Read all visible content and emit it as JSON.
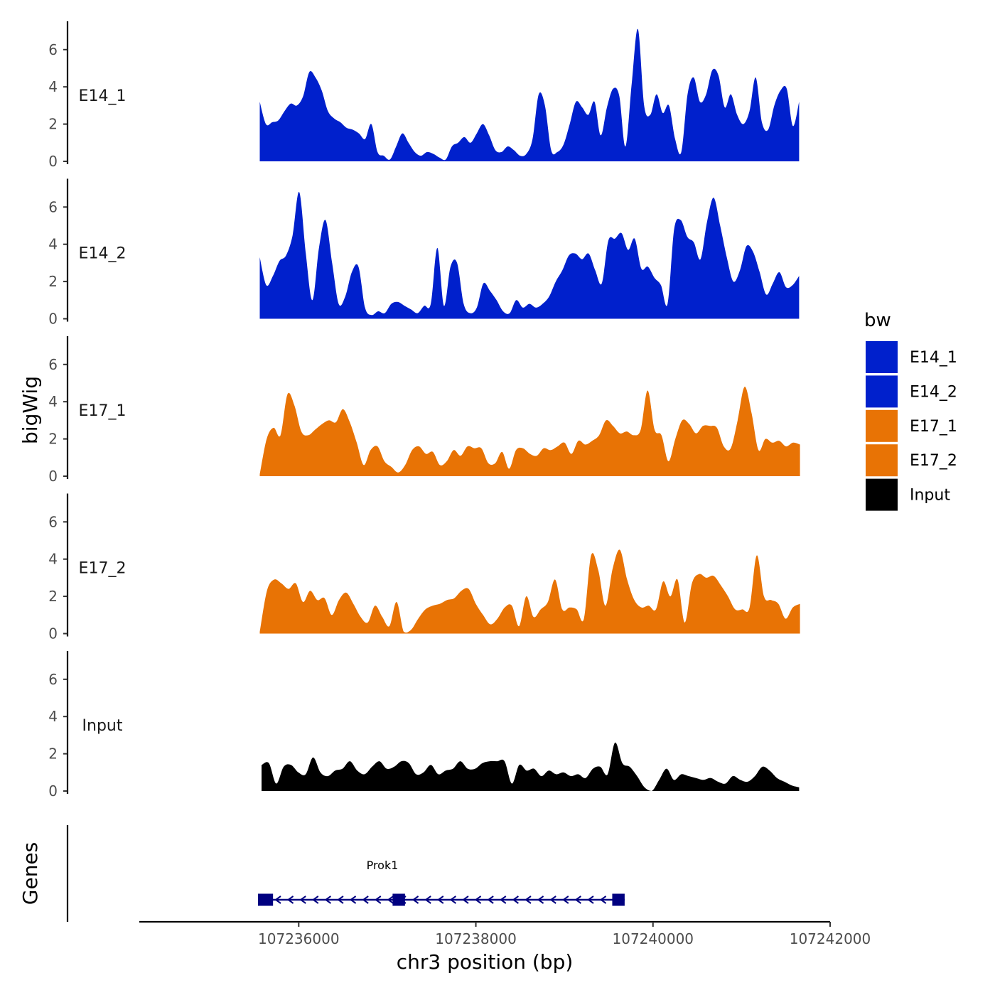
{
  "chart_data": {
    "type": "area",
    "ylabel": "bigWig",
    "genes_label": "Genes",
    "xlabel": "chr3 position (bp)",
    "xlim": [
      107234200,
      107242000
    ],
    "x_ticks": [
      107236000,
      107238000,
      107240000,
      107242000
    ],
    "x_tick_labels": [
      "107236000",
      "107238000",
      "107240000",
      "107242000"
    ],
    "ylim": [
      0,
      7.5
    ],
    "y_ticks": [
      0,
      2,
      4,
      6
    ],
    "y_tick_labels": [
      "0",
      "2",
      "4",
      "6"
    ],
    "legend": {
      "title": "bw",
      "position": "right"
    },
    "tracks": [
      {
        "name": "E14_1",
        "color": "#0020CC",
        "x_start": 107235560,
        "x_end": 107241650,
        "values": [
          3.2,
          2.0,
          2.1,
          2.2,
          2.7,
          3.1,
          3.0,
          3.5,
          4.8,
          4.5,
          3.8,
          2.7,
          2.3,
          2.1,
          1.8,
          1.7,
          1.5,
          1.2,
          2.0,
          0.5,
          0.3,
          0.1,
          0.8,
          1.5,
          1.0,
          0.5,
          0.3,
          0.5,
          0.4,
          0.2,
          0.1,
          0.8,
          1.0,
          1.3,
          1.0,
          1.5,
          2.0,
          1.4,
          0.6,
          0.5,
          0.8,
          0.6,
          0.3,
          0.4,
          1.2,
          3.6,
          3.0,
          0.6,
          0.5,
          0.9,
          2.0,
          3.2,
          2.9,
          2.5,
          3.2,
          1.4,
          2.9,
          3.9,
          3.5,
          0.8,
          4.2,
          7.1,
          3.0,
          2.5,
          3.6,
          2.6,
          3.0,
          1.2,
          0.5,
          3.6,
          4.5,
          3.2,
          3.6,
          4.9,
          4.6,
          2.9,
          3.6,
          2.5,
          2.0,
          2.7,
          4.5,
          2.1,
          1.7,
          3.0,
          3.8,
          3.9,
          1.9,
          3.2
        ]
      },
      {
        "name": "E14_2",
        "color": "#0020CC",
        "x_start": 107235560,
        "x_end": 107241650,
        "values": [
          3.3,
          1.8,
          2.3,
          3.1,
          3.4,
          4.5,
          6.8,
          3.5,
          1.0,
          3.8,
          5.3,
          3.0,
          0.8,
          1.2,
          2.5,
          2.8,
          0.6,
          0.2,
          0.4,
          0.3,
          0.8,
          0.9,
          0.7,
          0.5,
          0.3,
          0.7,
          0.8,
          3.8,
          0.7,
          2.8,
          3.0,
          0.8,
          0.3,
          0.6,
          1.9,
          1.5,
          1.0,
          0.4,
          0.3,
          1.0,
          0.6,
          0.8,
          0.6,
          0.8,
          1.2,
          2.0,
          2.6,
          3.4,
          3.5,
          3.2,
          3.5,
          2.6,
          1.9,
          4.2,
          4.3,
          4.6,
          3.7,
          4.3,
          2.7,
          2.8,
          2.2,
          1.8,
          0.8,
          4.8,
          5.3,
          4.4,
          4.1,
          3.2,
          5.2,
          6.5,
          5.0,
          3.3,
          2.0,
          2.6,
          3.9,
          3.6,
          2.5,
          1.3,
          1.9,
          2.5,
          1.7,
          1.8,
          2.3
        ]
      },
      {
        "name": "E17_1",
        "color": "#E87305",
        "x_start": 107235560,
        "x_end": 107241660,
        "values": [
          0.1,
          2.0,
          2.6,
          2.2,
          4.4,
          3.8,
          2.4,
          2.2,
          2.5,
          2.8,
          3.0,
          2.9,
          3.6,
          2.9,
          1.8,
          0.6,
          1.4,
          1.6,
          0.8,
          0.5,
          0.2,
          0.6,
          1.4,
          1.6,
          1.2,
          1.3,
          0.6,
          0.8,
          1.4,
          1.1,
          1.6,
          1.5,
          1.5,
          0.7,
          0.7,
          1.3,
          0.4,
          1.4,
          1.5,
          1.2,
          1.1,
          1.5,
          1.4,
          1.6,
          1.8,
          1.2,
          1.9,
          1.7,
          1.9,
          2.2,
          3.0,
          2.7,
          2.3,
          2.4,
          2.2,
          2.5,
          4.6,
          2.5,
          2.2,
          0.8,
          2.0,
          3.0,
          2.8,
          2.3,
          2.7,
          2.7,
          2.6,
          1.6,
          1.5,
          3.0,
          4.8,
          3.4,
          1.4,
          2.0,
          1.8,
          1.9,
          1.6,
          1.8,
          1.7
        ]
      },
      {
        "name": "E17_2",
        "color": "#E87305",
        "x_start": 107235560,
        "x_end": 107241660,
        "values": [
          0.1,
          2.3,
          2.9,
          2.7,
          2.4,
          2.7,
          1.7,
          2.3,
          1.8,
          1.9,
          1.0,
          1.8,
          2.2,
          1.6,
          0.9,
          0.6,
          1.5,
          0.9,
          0.4,
          1.7,
          0.1,
          0.2,
          0.8,
          1.3,
          1.5,
          1.6,
          1.8,
          1.9,
          2.3,
          2.4,
          1.6,
          1.0,
          0.5,
          0.8,
          1.4,
          1.5,
          0.4,
          2.0,
          0.9,
          1.3,
          1.7,
          2.9,
          1.3,
          1.4,
          1.3,
          0.8,
          4.2,
          3.4,
          1.5,
          3.5,
          4.5,
          2.9,
          1.8,
          1.4,
          1.5,
          1.3,
          2.8,
          2.0,
          2.9,
          0.6,
          2.7,
          3.2,
          3.0,
          3.1,
          2.6,
          2.0,
          1.3,
          1.3,
          1.4,
          4.2,
          2.0,
          1.8,
          1.6,
          0.8,
          1.4,
          1.6
        ]
      },
      {
        "name": "Input",
        "color": "#000000",
        "x_start": 107235580,
        "x_end": 107241650,
        "values": [
          1.4,
          1.5,
          0.4,
          1.3,
          1.4,
          1.0,
          0.9,
          1.8,
          1.0,
          0.8,
          1.1,
          1.2,
          1.6,
          1.1,
          0.9,
          1.3,
          1.6,
          1.2,
          1.3,
          1.6,
          1.5,
          0.9,
          1.0,
          1.4,
          0.9,
          1.1,
          1.2,
          1.6,
          1.2,
          1.2,
          1.5,
          1.6,
          1.6,
          1.6,
          0.4,
          1.4,
          1.1,
          1.2,
          0.8,
          1.1,
          0.9,
          1.0,
          0.8,
          0.9,
          0.7,
          1.2,
          1.3,
          0.9,
          2.6,
          1.5,
          1.3,
          0.8,
          0.2,
          0.0,
          0.6,
          1.2,
          0.6,
          0.9,
          0.8,
          0.7,
          0.6,
          0.7,
          0.5,
          0.4,
          0.8,
          0.6,
          0.5,
          0.8,
          1.3,
          1.1,
          0.7,
          0.5,
          0.3,
          0.2
        ]
      }
    ],
    "genes": [
      {
        "name": "Prok1",
        "strand": "-",
        "start": 107235560,
        "end": 107237100,
        "end2": 107239680,
        "exons": [
          [
            107235540,
            107235710
          ],
          [
            107237060,
            107237200
          ],
          [
            107239540,
            107239680
          ]
        ]
      }
    ]
  }
}
